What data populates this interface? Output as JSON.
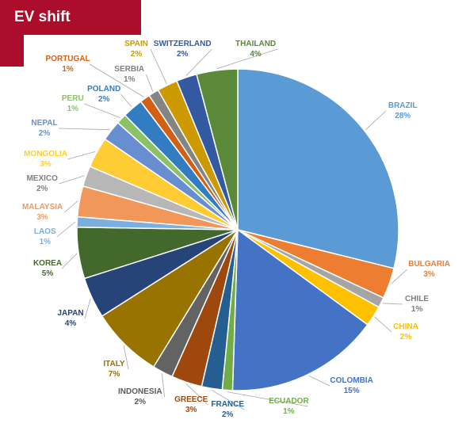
{
  "header": {
    "title": "EV shift"
  },
  "chart_data": {
    "type": "pie",
    "title": "",
    "slices": [
      {
        "label": "BRAZIL",
        "value": 28,
        "display": "28%",
        "color": "#5b9bd5"
      },
      {
        "label": "BULGARIA",
        "value": 3,
        "display": "3%",
        "color": "#ed7d31"
      },
      {
        "label": "CHILE",
        "value": 1,
        "display": "1%",
        "color": "#a5a5a5"
      },
      {
        "label": "CHINA",
        "value": 2,
        "display": "2%",
        "color": "#ffc000"
      },
      {
        "label": "COLOMBIA",
        "value": 15,
        "display": "15%",
        "color": "#4472c4"
      },
      {
        "label": "ECUADOR",
        "value": 1,
        "display": "1%",
        "color": "#70ad47"
      },
      {
        "label": "FRANCE",
        "value": 2,
        "display": "2%",
        "color": "#255e91"
      },
      {
        "label": "GREECE",
        "value": 3,
        "display": "3%",
        "color": "#9e480e"
      },
      {
        "label": "INDONESIA",
        "value": 2,
        "display": "2%",
        "color": "#636363"
      },
      {
        "label": "ITALY",
        "value": 7,
        "display": "7%",
        "color": "#997300"
      },
      {
        "label": "JAPAN",
        "value": 4,
        "display": "4%",
        "color": "#264478"
      },
      {
        "label": "KOREA",
        "value": 5,
        "display": "5%",
        "color": "#43682b"
      },
      {
        "label": "LAOS",
        "value": 1,
        "display": "1%",
        "color": "#7cafdd"
      },
      {
        "label": "MALAYSIA",
        "value": 3,
        "display": "3%",
        "color": "#f1975a"
      },
      {
        "label": "MEXICO",
        "value": 2,
        "display": "2%",
        "color": "#b7b7b7"
      },
      {
        "label": "MONGOLIA",
        "value": 3,
        "display": "3%",
        "color": "#ffcd33"
      },
      {
        "label": "NEPAL",
        "value": 2,
        "display": "2%",
        "color": "#698ed0"
      },
      {
        "label": "PERU",
        "value": 1,
        "display": "1%",
        "color": "#8cc168"
      },
      {
        "label": "POLAND",
        "value": 2,
        "display": "2%",
        "color": "#327dc2"
      },
      {
        "label": "PORTUGAL",
        "value": 1,
        "display": "1%",
        "color": "#d26012"
      },
      {
        "label": "SERBIA",
        "value": 1,
        "display": "1%",
        "color": "#848484"
      },
      {
        "label": "SPAIN",
        "value": 2,
        "display": "2%",
        "color": "#cc9a00"
      },
      {
        "label": "SWITZERLAND",
        "value": 2,
        "display": "2%",
        "color": "#335aa1"
      },
      {
        "label": "THAILAND",
        "value": 4,
        "display": "4%",
        "color": "#5a8a39"
      }
    ]
  }
}
